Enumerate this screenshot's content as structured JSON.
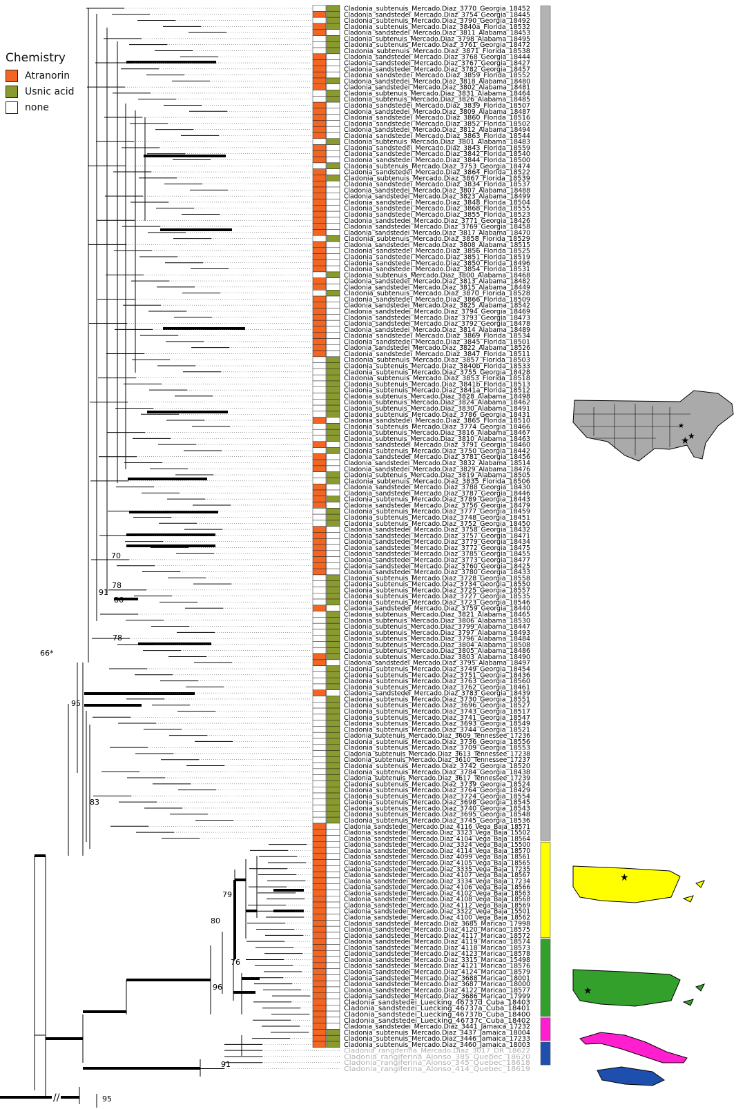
{
  "legend": {
    "title": "Chemistry",
    "items": [
      {
        "label": "Atranorin",
        "color": "#f26522"
      },
      {
        "label": "Usnic acid",
        "color": "#8a9a2e"
      },
      {
        "label": "none",
        "color": "#ffffff"
      }
    ]
  },
  "colors": {
    "atranorin": "#f26522",
    "usnic": "#8a9a2e",
    "gray_clade": "#b3b3b3",
    "yellow_clade": "#ffff00",
    "green_clade": "#33a02c",
    "magenta_clade": "#ff1fce",
    "blue_clade": "#1f4fae",
    "outgroup_text": "#b0b0b0"
  },
  "support_labels": [
    "66*",
    "95",
    "70",
    "91",
    "78",
    "86",
    "78",
    "83",
    "79",
    "80",
    "76",
    "96",
    "91",
    "95"
  ],
  "axis_break": "//",
  "maps": [
    {
      "icon": "usa-map-icon",
      "fill": "#aaaaaa",
      "stars": 3
    },
    {
      "icon": "puerto-rico-map-icon",
      "fill": "#ffff00",
      "stars": 1
    },
    {
      "icon": "puerto-rico-map-icon",
      "fill": "#33a02c",
      "stars": 1
    },
    {
      "icon": "cuba-map-icon",
      "fill": "#ff1fce",
      "stars": 0
    },
    {
      "icon": "jamaica-map-icon",
      "fill": "#1f4fae",
      "stars": 0
    }
  ],
  "taxa": [
    [
      "Cladonia_subtenuis_Mercado.Diaz_3770_Georgia_18452",
      "N",
      "U"
    ],
    [
      "Cladonia_sandstedei_Mercado.Diaz_3754_Georgia_18445",
      "A",
      "U"
    ],
    [
      "Cladonia_subtenuis_Mercado.Diaz_3790_Georgia_18492",
      "N",
      "U"
    ],
    [
      "Cladonia_subtenuis_Mercado.Diaz_3840a_Florida_18532",
      "A",
      "U"
    ],
    [
      "Cladonia_sandstedei_Mercado.Diaz_3811_Alabama_18453",
      "A",
      "N"
    ],
    [
      "Cladonia_subtenuis_Mercado.Diaz_3798_Alabama_18495",
      "N",
      "U"
    ],
    [
      "Cladonia_subtenuis_Mercado.Diaz_3761_Georgia_18472",
      "N",
      "U"
    ],
    [
      "Cladonia_subtenuis_Mercado.Diaz_3871_Florida_18538",
      "N",
      "U"
    ],
    [
      "Cladonia_sandstedei_Mercado.Diaz_3768_Georgia_18444",
      "A",
      "N"
    ],
    [
      "Cladonia_sandstedei_Mercado.Diaz_3767_Georgia_18427",
      "A",
      "N"
    ],
    [
      "Cladonia_sandstedei_Mercado.Diaz_3782_Georgia_18457",
      "A",
      "N"
    ],
    [
      "Cladonia_sandstedei_Mercado.Diaz_3859_Florida_18552",
      "A",
      "N"
    ],
    [
      "Cladonia_sandstedei_Mercado.Diaz_3818_Alabama_18480",
      "A",
      "U"
    ],
    [
      "Cladonia_sandstedei_Mercado.Diaz_3802_Alabama_18481",
      "A",
      "N"
    ],
    [
      "Cladonia_subtenuis_Mercado.Diaz_3831_Alabama_18464",
      "N",
      "U"
    ],
    [
      "Cladonia_subtenuis_Mercado.Diaz_3826_Alabama_18485",
      "N",
      "U"
    ],
    [
      "Cladonia_sandstedei_Mercado.Diaz_3839_Florida_18507",
      "A",
      "N"
    ],
    [
      "Cladonia_sandstedei_Mercado.Diaz_3809_Alabama_18487",
      "A",
      "N"
    ],
    [
      "Cladonia_sandstedei_Mercado.Diaz_3860_Florida_18516",
      "A",
      "N"
    ],
    [
      "Cladonia_sandstedei_Mercado.Diaz_3852_Florida_18502",
      "A",
      "N"
    ],
    [
      "Cladonia_sandstedei_Mercado.Diaz_3812_Alabama_18494",
      "A",
      "N"
    ],
    [
      "Cladonia_sandstedei_Mercado.Diaz_3863_Florida_18544",
      "A",
      "N"
    ],
    [
      "Cladonia_subtenuis_Mercado.Diaz_3801_Alabama_18483",
      "N",
      "U"
    ],
    [
      "Cladonia_sandstedei_Mercado.Diaz_3843_Florida_18559",
      "A",
      "N"
    ],
    [
      "Cladonia_sandstedei_Mercado.Diaz_3842_Florida_18540",
      "A",
      "N"
    ],
    [
      "Cladonia_sandstedei_Mercado.Diaz_3844_Florida_18500",
      "A",
      "N"
    ],
    [
      "Cladonia_subtenuis_Mercado.Diaz_3753_Georgia_18474",
      "N",
      "U"
    ],
    [
      "Cladonia_sandstedei_Mercado.Diaz_3864_Florida_18522",
      "A",
      "N"
    ],
    [
      "Cladonia_subtenuis_Mercado.Diaz_3867_Florida_18539",
      "A",
      "U"
    ],
    [
      "Cladonia_sandstedei_Mercado.Diaz_3834_Florida_18537",
      "A",
      "N"
    ],
    [
      "Cladonia_sandstedei_Mercado.Diaz_3807_Alabama_18488",
      "A",
      "N"
    ],
    [
      "Cladonia_sandstedei_Mercado.Diaz_3823_Alabama_18499",
      "A",
      "N"
    ],
    [
      "Cladonia_sandstedei_Mercado.Diaz_3848_Florida_18504",
      "A",
      "N"
    ],
    [
      "Cladonia_sandstedei_Mercado.Diaz_3868_Florida_18555",
      "A",
      "N"
    ],
    [
      "Cladonia_sandstedei_Mercado.Diaz_3855_Florida_18523",
      "A",
      "N"
    ],
    [
      "Cladonia_sandstedei_Mercado.Diaz_3771_Georgia_18426",
      "A",
      "N"
    ],
    [
      "Cladonia_sandstedei_Mercado.Diaz_3769_Georgia_18458",
      "A",
      "N"
    ],
    [
      "Cladonia_sandstedei_Mercado.Diaz_3817_Alabama_18470",
      "A",
      "N"
    ],
    [
      "Cladonia_subtenuis_Mercado.Diaz_3858_Florida_18529",
      "N",
      "U"
    ],
    [
      "Cladonia_sandstedei_Mercado.Diaz_3808_Alabama_18515",
      "A",
      "N"
    ],
    [
      "Cladonia_sandstedei_Mercado.Diaz_3856_Florida_18525",
      "A",
      "N"
    ],
    [
      "Cladonia_sandstedei_Mercado.Diaz_3851_Florida_18519",
      "A",
      "N"
    ],
    [
      "Cladonia_sandstedei_Mercado.Diaz_3850_Florida_18496",
      "A",
      "N"
    ],
    [
      "Cladonia_sandstedei_Mercado.Diaz_3854_Florida_18531",
      "A",
      "N"
    ],
    [
      "Cladonia_subtenuis_Mercado.Diaz_3800_Alabama_18468",
      "N",
      "U"
    ],
    [
      "Cladonia_sandstedei_Mercado.Diaz_3813_Alabama_18482",
      "A",
      "N"
    ],
    [
      "Cladonia_sandstedei_Mercado.Diaz_3815_Alabama_18449",
      "A",
      "N"
    ],
    [
      "Cladonia_subtenuis_Mercado.Diaz_3870_Florida_18528",
      "N",
      "U"
    ],
    [
      "Cladonia_sandstedei_Mercado.Diaz_3866_Florida_18509",
      "A",
      "N"
    ],
    [
      "Cladonia_sandstedei_Mercado.Diaz_3825_Alabama_18542",
      "A",
      "N"
    ],
    [
      "Cladonia_sandstedei_Mercado.Diaz_3794_Georgia_18469",
      "A",
      "N"
    ],
    [
      "Cladonia_sandstedei_Mercado.Diaz_3793_Georgia_18473",
      "A",
      "N"
    ],
    [
      "Cladonia_sandstedei_Mercado.Diaz_3792_Georgia_18478",
      "A",
      "N"
    ],
    [
      "Cladonia_sandstedei_Mercado.Diaz_3814_Alabama_18489",
      "A",
      "N"
    ],
    [
      "Cladonia_sandstedei_Mercado.Diaz_3869_Florida_18534",
      "A",
      "N"
    ],
    [
      "Cladonia_sandstedei_Mercado.Diaz_3845_Florida_18501",
      "A",
      "N"
    ],
    [
      "Cladonia_sandstedei_Mercado.Diaz_3822_Alabama_18526",
      "A",
      "N"
    ],
    [
      "Cladonia_sandstedei_Mercado.Diaz_3847_Florida_18511",
      "A",
      "N"
    ],
    [
      "Cladonia_subtenuis_Mercado.Diaz_3857_Florida_18503",
      "N",
      "U"
    ],
    [
      "Cladonia_subtenuis_Mercado.Diaz_3840b_Florida_18533",
      "N",
      "U"
    ],
    [
      "Cladonia_subtenuis_Mercado.Diaz_3755_Georgia_18428",
      "N",
      "U"
    ],
    [
      "Cladonia_subtenuis_Mercado.Diaz_3853_Florida_18518",
      "N",
      "U"
    ],
    [
      "Cladonia_subtenuis_Mercado.Diaz_3841b_Florida_18513",
      "N",
      "U"
    ],
    [
      "Cladonia_subtenuis_Mercado.Diaz_3841a_Florida_18512",
      "N",
      "U"
    ],
    [
      "Cladonia_subtenuis_Mercado.Diaz_3828_Alabama_18498",
      "N",
      "U"
    ],
    [
      "Cladonia_subtenuis_Mercado.Diaz_3824_Alabama_18462",
      "N",
      "U"
    ],
    [
      "Cladonia_subtenuis_Mercado.Diaz_3830_Alabama_18491",
      "N",
      "U"
    ],
    [
      "Cladonia_subtenuis_Mercado.Diaz_3786_Georgia_18431",
      "N",
      "U"
    ],
    [
      "Cladonia_sandstedei_Mercado.Diaz_3865_Florida_18510",
      "A",
      "N"
    ],
    [
      "Cladonia_subtenuis_Mercado.Diaz_3774_Georgia_18466",
      "N",
      "U"
    ],
    [
      "Cladonia_subtenuis_Mercado.Diaz_3816_Alabama_18467",
      "N",
      "U"
    ],
    [
      "Cladonia_subtenuis_Mercado.Diaz_3810_Alabama_18463",
      "N",
      "U"
    ],
    [
      "Cladonia_sandstedei_Mercado.Diaz_3791_Georgia_18460",
      "A",
      "N"
    ],
    [
      "Cladonia_subtenuis_Mercado.Diaz_3750_Georgia_18442",
      "N",
      "U"
    ],
    [
      "Cladonia_sandstedei_Mercado.Diaz_3781_Georgia_18456",
      "A",
      "N"
    ],
    [
      "Cladonia_sandstedei_Mercado.Diaz_3832_Alabama_18514",
      "A",
      "N"
    ],
    [
      "Cladonia_sandstedei_Mercado.Diaz_3829_Alabama_18476",
      "A",
      "N"
    ],
    [
      "Cladonia_subtenuis_Mercado.Diaz_3819_Alabama_18505",
      "N",
      "U"
    ],
    [
      "Cladonia_subtenuis_Mercado.Diaz_3835_Florida_18506",
      "N",
      "U"
    ],
    [
      "Cladonia_sandstedei_Mercado.Diaz_3788_Georgia_18430",
      "A",
      "N"
    ],
    [
      "Cladonia_sandstedei_Mercado.Diaz_3787_Georgia_18446",
      "A",
      "N"
    ],
    [
      "Cladonia_subtenuis_Mercado.Diaz_3789_Georgia_18443",
      "A",
      "U"
    ],
    [
      "Cladonia_sandstedei_Mercado.Diaz_3756_Georgia_18479",
      "A",
      "N"
    ],
    [
      "Cladonia_subtenuis_Mercado.Diaz_3777_Georgia_18459",
      "N",
      "U"
    ],
    [
      "Cladonia_subtenuis_Mercado.Diaz_3748_Georgia_18451",
      "N",
      "U"
    ],
    [
      "Cladonia_subtenuis_Mercado.Diaz_3752_Georgia_18450",
      "N",
      "U"
    ],
    [
      "Cladonia_sandstedei_Mercado.Diaz_3758_Georgia_18432",
      "A",
      "N"
    ],
    [
      "Cladonia_sandstedei_Mercado.Diaz_3757_Georgia_18471",
      "A",
      "N"
    ],
    [
      "Cladonia_sandstedei_Mercado.Diaz_3779_Georgia_18434",
      "A",
      "N"
    ],
    [
      "Cladonia_sandstedei_Mercado.Diaz_3772_Georgia_18475",
      "A",
      "N"
    ],
    [
      "Cladonia_sandstedei_Mercado.Diaz_3785_Georgia_18455",
      "A",
      "N"
    ],
    [
      "Cladonia_sandstedei_Mercado.Diaz_3773_Georgia_18477",
      "A",
      "N"
    ],
    [
      "Cladonia_sandstedei_Mercado.Diaz_3760_Georgia_18425",
      "A",
      "N"
    ],
    [
      "Cladonia_sandstedei_Mercado.Diaz_3780_Georgia_18433",
      "A",
      "N"
    ],
    [
      "Cladonia_subtenuis_Mercado.Diaz_3728_Georgia_18558",
      "N",
      "U"
    ],
    [
      "Cladonia_subtenuis_Mercado.Diaz_3734_Georgia_18550",
      "N",
      "U"
    ],
    [
      "Cladonia_subtenuis_Mercado.Diaz_3725_Georgia_18557",
      "N",
      "U"
    ],
    [
      "Cladonia_subtenuis_Mercado.Diaz_3727_Georgia_18535",
      "N",
      "U"
    ],
    [
      "Cladonia_subtenuis_Mercado.Diaz_3723_Georgia_18546",
      "N",
      "U"
    ],
    [
      "Cladonia_sandstedei_Mercado.Diaz_3759_Georgia_18440",
      "A",
      "N"
    ],
    [
      "Cladonia_subtenuis_Mercado.Diaz_3821_Alabama_18465",
      "N",
      "U"
    ],
    [
      "Cladonia_subtenuis_Mercado.Diaz_3806_Alabama_18530",
      "N",
      "U"
    ],
    [
      "Cladonia_subtenuis_Mercado.Diaz_3799_Alabama_18447",
      "N",
      "U"
    ],
    [
      "Cladonia_subtenuis_Mercado.Diaz_3797_Alabama_18493",
      "N",
      "U"
    ],
    [
      "Cladonia_subtenuis_Mercado.Diaz_3796_Alabama_18484",
      "N",
      "U"
    ],
    [
      "Cladonia_subtenuis_Mercado.Diaz_3804_Alabama_18508",
      "N",
      "U"
    ],
    [
      "Cladonia_subtenuis_Mercado.Diaz_3805_Alabama_18486",
      "N",
      "U"
    ],
    [
      "Cladonia_subtenuis_Mercado.Diaz_3803_Alabama_18490",
      "A",
      "U"
    ],
    [
      "Cladonia_sandstedei_Mercado.Diaz_3795_Alabama_18497",
      "A",
      "N"
    ],
    [
      "Cladonia_subtenuis_Mercado.Diaz_3749_Georgia_18454",
      "N",
      "U"
    ],
    [
      "Cladonia_subtenuis_Mercado.Diaz_3751_Georgia_18436",
      "N",
      "U"
    ],
    [
      "Cladonia_subtenuis_Mercado.Diaz_3763_Georgia_18560",
      "N",
      "U"
    ],
    [
      "Cladonia_subtenuis_Mercado.Diaz_3762_Georgia_18461",
      "N",
      "U"
    ],
    [
      "Cladonia_sandstedei_Mercado.Diaz_3783_Georgia_18439",
      "A",
      "N"
    ],
    [
      "Cladonia_subtenuis_Mercado.Diaz_3730_Georgia_18551",
      "N",
      "U"
    ],
    [
      "Cladonia_subtenuis_Mercado.Diaz_3696_Georgia_18527",
      "N",
      "U"
    ],
    [
      "Cladonia_subtenuis_Mercado.Diaz_3743_Georgia_18517",
      "N",
      "U"
    ],
    [
      "Cladonia_subtenuis_Mercado.Diaz_3741_Georgia_18547",
      "N",
      "U"
    ],
    [
      "Cladonia_subtenuis_Mercado.Diaz_3693_Georgia_18549",
      "N",
      "U"
    ],
    [
      "Cladonia_subtenuis_Mercado.Diaz_3744_Georgia_18521",
      "N",
      "U"
    ],
    [
      "Cladonia_subtenuis_Mercado.Diaz_3609_Tennessee_17236",
      "N",
      "U"
    ],
    [
      "Cladonia_subtenuis_Mercado.Diaz_3736_Georgia_18556",
      "N",
      "U"
    ],
    [
      "Cladonia_subtenuis_Mercado.Diaz_3709_Georgia_18553",
      "N",
      "U"
    ],
    [
      "Cladonia_subtenuis_Mercado.Diaz_3613_Tennessee_17238",
      "N",
      "U"
    ],
    [
      "Cladonia_subtenuis_Mercado.Diaz_3610_Tennessee_17237",
      "N",
      "U"
    ],
    [
      "Cladonia_subtenuis_Mercado.Diaz_3742_Georgia_18520",
      "N",
      "U"
    ],
    [
      "Cladonia_subtenuis_Mercado.Diaz_3784_Georgia_18438",
      "N",
      "U"
    ],
    [
      "Cladonia_subtenuis_Mercado.Diaz_3617_Tennessee_17239",
      "N",
      "U"
    ],
    [
      "Cladonia_subtenuis_Mercado.Diaz_3739_Georgia_18524",
      "N",
      "U"
    ],
    [
      "Cladonia_subtenuis_Mercado.Diaz_3764_Georgia_18429",
      "N",
      "U"
    ],
    [
      "Cladonia_subtenuis_Mercado.Diaz_3724_Georgia_18554",
      "N",
      "U"
    ],
    [
      "Cladonia_subtenuis_Mercado.Diaz_3698_Georgia_18545",
      "N",
      "U"
    ],
    [
      "Cladonia_subtenuis_Mercado.Diaz_3740_Georgia_18543",
      "N",
      "U"
    ],
    [
      "Cladonia_subtenuis_Mercado.Diaz_3695_Georgia_18548",
      "N",
      "U"
    ],
    [
      "Cladonia_subtenuis_Mercado.Diaz_3745_Georgia_18536",
      "N",
      "U"
    ],
    [
      "Cladonia_sandstedei_Mercado.Diaz_4116_Vega_Baja_18571",
      "A",
      "N"
    ],
    [
      "Cladonia_sandstedei_Mercado.Diaz_3323_Vega_Baja_15502",
      "A",
      "N"
    ],
    [
      "Cladonia_sandstedei_Mercado.Diaz_4104_Vega_Baja_18564",
      "A",
      "N"
    ],
    [
      "Cladonia_sandstedei_Mercado.Diaz_3324_Vega_Baja_15500",
      "A",
      "N"
    ],
    [
      "Cladonia_sandstedei_Mercado.Diaz_4114_Vega_Baja_18570",
      "A",
      "N"
    ],
    [
      "Cladonia_sandstedei_Mercado.Diaz_4099_Vega_Baja_18561",
      "A",
      "N"
    ],
    [
      "Cladonia_sandstedei_Mercado.Diaz_4105_Vega_Baja_18565",
      "A",
      "N"
    ],
    [
      "Cladonia_sandstedei_Mercado.Diaz_3335_Vega_Baja_17235",
      "A",
      "N"
    ],
    [
      "Cladonia_sandstedei_Mercado.Diaz_4107_Vega_Baja_18567",
      "A",
      "N"
    ],
    [
      "Cladonia_sandstedei_Mercado.Diaz_3334_Vega_Baja_17234",
      "A",
      "N"
    ],
    [
      "Cladonia_sandstedei_Mercado.Diaz_4106_Vega_Baja_18566",
      "A",
      "N"
    ],
    [
      "Cladonia_sandstedei_Mercado.Diaz_4102_Vega_Baja_18563",
      "A",
      "N"
    ],
    [
      "Cladonia_sandstedei_Mercado.Diaz_4108_Vega_Baja_18568",
      "A",
      "N"
    ],
    [
      "Cladonia_sandstedei_Mercado.Diaz_4112_Vega_Baja_18569",
      "A",
      "N"
    ],
    [
      "Cladonia_sandstedei_Mercado.Diaz_3322_Vega_Baja_15501",
      "A",
      "N"
    ],
    [
      "Cladonia_sandstedei_Mercado.Diaz_4100_Vega_Baja_18562",
      "A",
      "N"
    ],
    [
      "Cladonia_sandstedei_Mercado.Diaz_3685_Maricao_17998",
      "A",
      "N"
    ],
    [
      "Cladonia_sandstedei_Mercado.Diaz_4120_Maricao_18575",
      "A",
      "N"
    ],
    [
      "Cladonia_sandstedei_Mercado.Diaz_4117_Maricao_18572",
      "A",
      "N"
    ],
    [
      "Cladonia_sandstedei_Mercado.Diaz_4119_Maricao_18574",
      "A",
      "N"
    ],
    [
      "Cladonia_sandstedei_Mercado.Diaz_4118_Maricao_18573",
      "A",
      "N"
    ],
    [
      "Cladonia_sandstedei_Mercado.Diaz_4123_Maricao_18578",
      "A",
      "N"
    ],
    [
      "Cladonia_sandstedei_Mercado.Diaz_3315_Maricao_15498",
      "A",
      "N"
    ],
    [
      "Cladonia_sandstedei_Mercado.Diaz_4121_Maricao_18576",
      "A",
      "N"
    ],
    [
      "Cladonia_sandstedei_Mercado.Diaz_4124_Maricao_18579",
      "A",
      "N"
    ],
    [
      "Cladonia_sandstedei_Mercado.Diaz_3688_Maricao_18001",
      "A",
      "N"
    ],
    [
      "Cladonia_sandstedei_Mercado.Diaz_3687_Maricao_18000",
      "A",
      "N"
    ],
    [
      "Cladonia_sandstedei_Mercado.Diaz_4122_Maricao_18577",
      "A",
      "N"
    ],
    [
      "Cladonia_sandstedei_Mercado.Diaz_3686_Maricao_17999",
      "A",
      "N"
    ],
    [
      "Cladonia_sandstedei_Luecking_46737d_Cuba_18403",
      "A",
      "N"
    ],
    [
      "Cladonia_sandstedei_Luecking_46737a_Cuba_18401",
      "A",
      "N"
    ],
    [
      "Cladonia_sandstedei_Luecking_46737b_Cuba_18400",
      "A",
      "N"
    ],
    [
      "Cladonia_sandstedei_Luecking_46737c_Cuba_18402",
      "A",
      "N"
    ],
    [
      "Cladonia_sandstedei_Mercado.Diaz_3441_Jamaica_17232",
      "A",
      "N"
    ],
    [
      "Cladonia_subtenuis_Mercado.Diaz_3437_Jamaica_18004",
      "A",
      "U"
    ],
    [
      "Cladonia_subtenuis_Mercado.Diaz_3446_Jamaica_17233",
      "A",
      "U"
    ],
    [
      "Cladonia_subtenuis_Mercado.Diaz_3460_Jamaica_18003",
      "A",
      "U"
    ],
    [
      "Cladonia_rangiferina_Mercado.Diaz_3017_DR_18622",
      "X",
      "X"
    ],
    [
      "Cladonia_rangiferina_Alonso_385_Quebec_18620",
      "X",
      "X"
    ],
    [
      "Cladonia_rangiferina_Alonso_345_Quebec_18618",
      "X",
      "X"
    ],
    [
      "Cladonia_rangiferina_Alonso_414_Quebec_18619",
      "X",
      "X"
    ]
  ]
}
